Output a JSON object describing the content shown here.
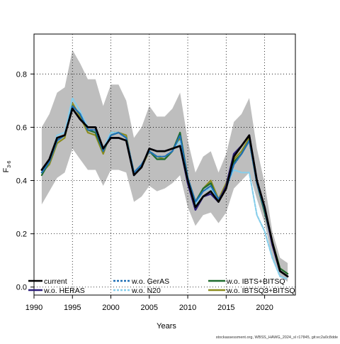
{
  "chart_data": {
    "type": "line",
    "xlabel": "Years",
    "ylabel_main": "F",
    "ylabel_sub": "3-6",
    "xlim": [
      1990,
      2024
    ],
    "ylim": [
      -0.03,
      0.95
    ],
    "xticks": [
      1990,
      1995,
      2000,
      2005,
      2010,
      2015,
      2020
    ],
    "yticks": [
      0.0,
      0.2,
      0.4,
      0.6,
      0.8
    ],
    "ytick_labels": [
      "0.0",
      "0.2",
      "0.4",
      "0.6",
      "0.8"
    ],
    "grid": true,
    "legend_position": "bottom",
    "x": [
      1991,
      1992,
      1993,
      1994,
      1995,
      1996,
      1997,
      1998,
      1999,
      2000,
      2001,
      2002,
      2003,
      2004,
      2005,
      2006,
      2007,
      2008,
      2009,
      2010,
      2011,
      2012,
      2013,
      2014,
      2015,
      2016,
      2017,
      2018,
      2019,
      2020,
      2021,
      2022,
      2023
    ],
    "band": {
      "upper": [
        0.6,
        0.65,
        0.73,
        0.75,
        0.89,
        0.84,
        0.78,
        0.78,
        0.68,
        0.76,
        0.76,
        0.7,
        0.56,
        0.6,
        0.68,
        0.64,
        0.64,
        0.67,
        0.73,
        0.55,
        0.43,
        0.49,
        0.51,
        0.43,
        0.5,
        0.62,
        0.65,
        0.71,
        0.52,
        0.39,
        0.21,
        0.11,
        0.09
      ],
      "lower": [
        0.31,
        0.36,
        0.41,
        0.43,
        0.52,
        0.48,
        0.44,
        0.44,
        0.38,
        0.44,
        0.44,
        0.43,
        0.32,
        0.34,
        0.38,
        0.36,
        0.37,
        0.39,
        0.42,
        0.3,
        0.23,
        0.27,
        0.28,
        0.24,
        0.28,
        0.37,
        0.4,
        0.43,
        0.33,
        0.24,
        0.11,
        0.04,
        0.02
      ]
    },
    "series": [
      {
        "name": "current",
        "color": "#000000",
        "values": [
          0.44,
          0.48,
          0.56,
          0.57,
          0.67,
          0.63,
          0.6,
          0.6,
          0.52,
          0.56,
          0.56,
          0.55,
          0.42,
          0.45,
          0.52,
          0.51,
          0.51,
          0.52,
          0.53,
          0.4,
          0.3,
          0.34,
          0.36,
          0.32,
          0.37,
          0.49,
          0.53,
          0.57,
          0.4,
          0.3,
          0.17,
          0.06,
          0.04
        ]
      },
      {
        "name": "w.o. HERAS",
        "color": "#2c1e7a",
        "values": [
          0.44,
          0.48,
          0.56,
          0.57,
          0.67,
          0.63,
          0.6,
          0.6,
          0.52,
          0.56,
          0.56,
          0.55,
          0.42,
          0.45,
          0.52,
          0.51,
          0.51,
          0.52,
          0.53,
          0.39,
          0.29,
          0.34,
          0.35,
          0.32,
          0.38,
          0.5,
          0.53,
          0.57,
          0.4,
          0.3,
          0.16,
          0.06,
          0.04
        ]
      },
      {
        "name": "w.o. GerAS",
        "color": "#1f6fb5",
        "values": [
          0.43,
          0.47,
          0.55,
          0.57,
          0.68,
          0.65,
          0.59,
          0.59,
          0.51,
          0.57,
          0.58,
          0.56,
          0.43,
          0.46,
          0.51,
          0.49,
          0.49,
          0.51,
          0.57,
          0.41,
          0.32,
          0.36,
          0.38,
          0.33,
          0.37,
          0.46,
          0.5,
          0.55,
          0.39,
          0.29,
          0.16,
          0.06,
          0.04
        ]
      },
      {
        "name": "w.o. N20",
        "color": "#87ceeb",
        "values": [
          0.43,
          0.47,
          0.57,
          0.58,
          0.71,
          0.66,
          0.6,
          0.6,
          0.52,
          0.58,
          0.58,
          0.56,
          0.43,
          0.46,
          0.51,
          0.49,
          0.49,
          0.51,
          0.55,
          0.4,
          0.31,
          0.36,
          0.37,
          0.32,
          0.38,
          0.44,
          0.43,
          0.43,
          0.27,
          0.21,
          0.11,
          0.04,
          0.03
        ]
      },
      {
        "name": "w.o. IBTS+BITSQ",
        "color": "#1f6b2e",
        "values": [
          0.42,
          0.47,
          0.55,
          0.57,
          0.68,
          0.65,
          0.59,
          0.58,
          0.51,
          0.57,
          0.58,
          0.56,
          0.43,
          0.46,
          0.51,
          0.48,
          0.48,
          0.51,
          0.58,
          0.41,
          0.32,
          0.37,
          0.39,
          0.32,
          0.38,
          0.47,
          0.5,
          0.55,
          0.39,
          0.28,
          0.17,
          0.07,
          0.05
        ]
      },
      {
        "name": "w.o. IBTSQ3+BITSQ",
        "color": "#8c8c1e",
        "values": [
          0.43,
          0.46,
          0.54,
          0.56,
          0.69,
          0.64,
          0.58,
          0.57,
          0.5,
          0.58,
          0.58,
          0.57,
          0.42,
          0.45,
          0.51,
          0.49,
          0.48,
          0.51,
          0.56,
          0.4,
          0.31,
          0.37,
          0.4,
          0.33,
          0.39,
          0.48,
          0.51,
          0.56,
          0.4,
          0.29,
          0.17,
          0.07,
          0.05
        ]
      }
    ]
  },
  "legend": [
    {
      "label": "current",
      "color": "#000000",
      "style": "solid"
    },
    {
      "label": "w.o. HERAS",
      "color": "#2c1e7a",
      "style": "solid"
    },
    {
      "label": "w.o. GerAS",
      "color": "#1f6fb5",
      "style": "dashed"
    },
    {
      "label": "w.o. N20",
      "color": "#87ceeb",
      "style": "dashed"
    },
    {
      "label": "w.o. IBTS+BITSQ",
      "color": "#1f6b2e",
      "style": "solid"
    },
    {
      "label": "w.o. IBTSQ3+BITSQ",
      "color": "#8c8c1e",
      "style": "solid"
    }
  ],
  "band_color": "#bebebe",
  "footer": "stockassessment.org, WBSS_HAWG_2024_sl r17845, git:ec2a0c8dde"
}
